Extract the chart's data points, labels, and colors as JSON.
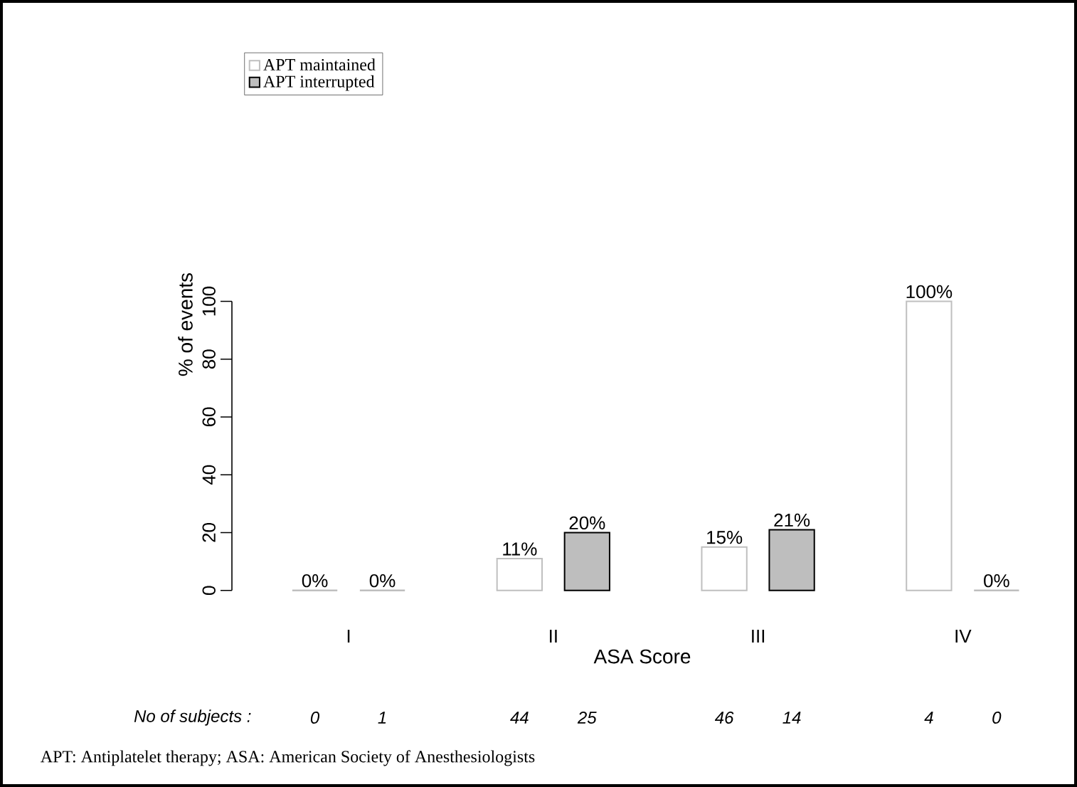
{
  "chart_data": {
    "type": "bar",
    "xlabel": "ASA Score",
    "ylabel": "% of events",
    "categories": [
      "I",
      "II",
      "III",
      "IV"
    ],
    "series": [
      {
        "name": "APT maintained",
        "color": "#ffffff",
        "values": [
          0,
          11,
          15,
          100
        ],
        "value_labels": [
          "0%",
          "11%",
          "15%",
          "100%"
        ]
      },
      {
        "name": "APT interrupted",
        "color": "#bebebe",
        "values": [
          0,
          20,
          21,
          0
        ],
        "value_labels": [
          "0%",
          "20%",
          "21%",
          "0%"
        ]
      }
    ],
    "ylim": [
      0,
      100
    ],
    "yticks": [
      0,
      20,
      40,
      60,
      80,
      100
    ],
    "grid": false,
    "legend": "top left",
    "annotations": [
      "No of subjects :",
      "0",
      "1",
      "44",
      "25",
      "46",
      "14",
      "4",
      "0",
      "APT: Antiplatelet therapy; ASA: American Society of Anesthesiologists"
    ]
  }
}
